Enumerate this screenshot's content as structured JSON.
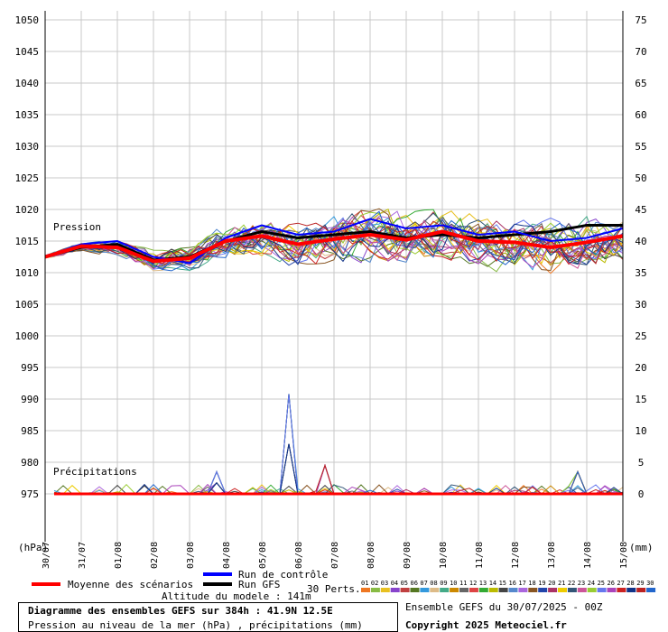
{
  "chart_data": {
    "type": "line",
    "x": [
      "30/07",
      "31/07",
      "01/08",
      "02/08",
      "03/08",
      "04/08",
      "05/08",
      "06/08",
      "07/08",
      "08/08",
      "09/08",
      "10/08",
      "11/08",
      "12/08",
      "13/08",
      "14/08",
      "15/08"
    ],
    "left_axis": {
      "unit": "(hPa)",
      "min": 975,
      "max": 1050,
      "step": 5
    },
    "right_axis": {
      "unit": "(mm)",
      "min": 0,
      "max": 75,
      "step": 5
    },
    "annotations": {
      "pressure": "Pression",
      "precip": "Précipitations"
    },
    "grid": true,
    "series": [
      {
        "name": "Moyenne des scénarios",
        "color": "#ff0000",
        "axis": "left",
        "values": [
          1012.5,
          1014.2,
          1014.0,
          1011.8,
          1012.3,
          1015.0,
          1015.8,
          1014.5,
          1015.3,
          1016.0,
          1015.2,
          1016.5,
          1015.0,
          1014.8,
          1014.0,
          1014.8,
          1015.8
        ]
      },
      {
        "name": "Run de contrôle",
        "color": "#0000ff",
        "axis": "left",
        "values": [
          1012.5,
          1014.5,
          1015.0,
          1012.5,
          1011.5,
          1015.5,
          1017.5,
          1016.0,
          1016.5,
          1018.5,
          1017.0,
          1017.5,
          1016.0,
          1016.5,
          1015.0,
          1015.5,
          1017.0
        ]
      },
      {
        "name": "Run GFS",
        "color": "#000000",
        "axis": "left",
        "values": [
          1012.5,
          1014.0,
          1014.5,
          1012.0,
          1012.5,
          1015.0,
          1016.5,
          1015.5,
          1016.0,
          1016.5,
          1015.5,
          1016.0,
          1015.5,
          1016.0,
          1016.5,
          1017.5,
          1017.5
        ]
      }
    ],
    "precip_peaks": [
      {
        "date": "06/08",
        "value": 15.8
      },
      {
        "date": "07/08",
        "value": 9.0
      },
      {
        "date": "14/08",
        "value": 7.0
      },
      {
        "date": "04/08",
        "value": 3.5
      }
    ]
  },
  "legend": {
    "moyenne": "Moyenne des scénarios",
    "controle": "Run de contrôle",
    "gfs": "Run GFS",
    "perts": "30 Perts.",
    "pert_labels": [
      "01",
      "02",
      "03",
      "04",
      "05",
      "06",
      "07",
      "08",
      "09",
      "10",
      "11",
      "12",
      "13",
      "14",
      "15",
      "16",
      "17",
      "18",
      "19",
      "20",
      "21",
      "22",
      "23",
      "24",
      "25",
      "26",
      "27",
      "28",
      "29",
      "30"
    ],
    "pert_colors": [
      "#ee7722",
      "#88bb44",
      "#e8c020",
      "#8844cc",
      "#c04040",
      "#557722",
      "#3399dd",
      "#ddbb88",
      "#44aa88",
      "#cc8800",
      "#666666",
      "#dd4444",
      "#33aa33",
      "#bbbb00",
      "#444444",
      "#5588cc",
      "#aa66dd",
      "#885522",
      "#2244aa",
      "#aa3366",
      "#eecc00",
      "#335577",
      "#cc5599",
      "#99cc33",
      "#6677ee",
      "#aa44bb",
      "#cc2222",
      "#113388",
      "#bb2222",
      "#2266cc"
    ]
  },
  "altitude": "Altitude du modele : 141m",
  "title_line1": "Diagramme des ensembles GEFS sur 384h : 41.9N 12.5E",
  "title_line2": "Pression au niveau de la mer (hPa) , précipitations (mm)",
  "ensemble_info": "Ensemble GEFS du 30/07/2025 - 00Z",
  "copyright": "Copyright 2025 Meteociel.fr"
}
